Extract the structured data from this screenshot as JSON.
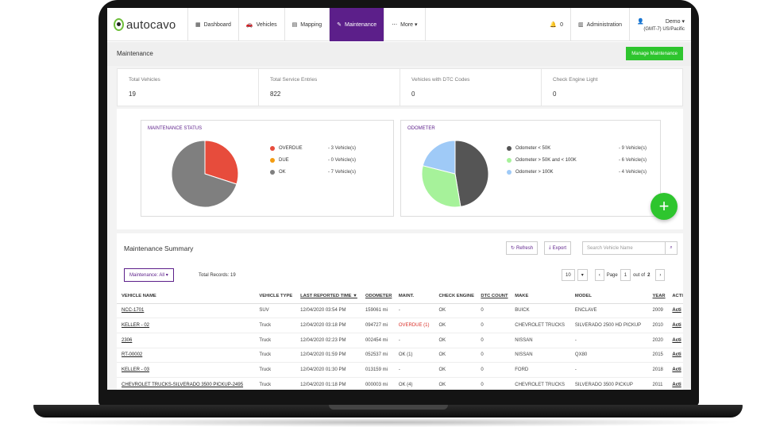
{
  "nav": {
    "logo": "autocavo",
    "items": [
      {
        "label": "Dashboard",
        "icon": "dashboard-icon",
        "glyph": "▦"
      },
      {
        "label": "Vehicles",
        "icon": "car-icon",
        "glyph": "🚗"
      },
      {
        "label": "Mapping",
        "icon": "map-icon",
        "glyph": "▤"
      },
      {
        "label": "Maintenance",
        "icon": "wrench-icon",
        "glyph": "✎"
      },
      {
        "label": "More ▾",
        "icon": "more-icon",
        "glyph": "⋯"
      }
    ],
    "notifications": {
      "icon": "bell-icon",
      "glyph": "🔔",
      "count": "0"
    },
    "admin": {
      "label": "Administration",
      "icon": "admin-icon",
      "glyph": "▥"
    },
    "user": {
      "name": "Demo ▾",
      "timezone": "(GMT-7) US/Pacific",
      "icon": "user-icon",
      "glyph": "👤"
    }
  },
  "header": {
    "title": "Maintenance",
    "manage_button": "Manage Maintenance"
  },
  "stats": [
    {
      "label": "Total Vehicles",
      "value": "19"
    },
    {
      "label": "Total Service Entries",
      "value": "822"
    },
    {
      "label": "Vehicles with DTC Codes",
      "value": "0"
    },
    {
      "label": "Check Engine Light",
      "value": "0"
    }
  ],
  "colors": {
    "purple": "#5c1f8a",
    "green": "#2ec52e",
    "overdue": "#e74c3c",
    "due": "#f39c12",
    "ok": "#7f7f7f",
    "od1": "#555555",
    "od2": "#a6f29a",
    "od3": "#9fcaf7"
  },
  "chart_data": [
    {
      "type": "pie",
      "title": "MAINTENANCE STATUS",
      "series": [
        {
          "name": "OVERDUE",
          "value": 3,
          "label": "- 3 Vehicle(s)",
          "color": "#e74c3c"
        },
        {
          "name": "DUE",
          "value": 0,
          "label": "- 0 Vehicle(s)",
          "color": "#f39c12"
        },
        {
          "name": "OK",
          "value": 7,
          "label": "- 7 Vehicle(s)",
          "color": "#7f7f7f"
        }
      ]
    },
    {
      "type": "pie",
      "title": "ODOMETER",
      "series": [
        {
          "name": "Odometer < 50K",
          "value": 9,
          "label": "- 9 Vehicle(s)",
          "color": "#555555"
        },
        {
          "name": "Odometer > 50K and < 100K",
          "value": 6,
          "label": "- 6 Vehicle(s)",
          "color": "#a6f29a"
        },
        {
          "name": "Odometer > 100K",
          "value": 4,
          "label": "- 4 Vehicle(s)",
          "color": "#9fcaf7"
        }
      ]
    }
  ],
  "summary": {
    "title": "Maintenance Summary",
    "refresh": "Refresh",
    "export": "Export",
    "search_placeholder": "Search Vehicle Name",
    "filter": "Maintenance: All ▾",
    "total_records": "Total Records: 19",
    "page_size": "10",
    "page_label": "Page",
    "page": "1",
    "out_of": "out of",
    "total_pages": "2",
    "columns": [
      "VEHICLE NAME",
      "VEHICLE TYPE",
      "LAST REPORTED TIME ▼",
      "ODOMETER",
      "MAINT.",
      "CHECK ENGINE",
      "DTC COUNT",
      "MAKE",
      "MODEL",
      "YEAR",
      "ACTI"
    ],
    "rows": [
      [
        "NCC-1701",
        "SUV",
        "12/04/2020 03:54 PM",
        "159061 mi",
        "-",
        "OK",
        "0",
        "BUICK",
        "ENCLAVE",
        "2009",
        "Acti"
      ],
      [
        "KELLER - 02",
        "Truck",
        "12/04/2020 03:18 PM",
        "094727 mi",
        "OVERDUE (1)",
        "OK",
        "0",
        "CHEVROLET TRUCKS",
        "SILVERADO 2500 HD PICKUP",
        "2010",
        "Acti"
      ],
      [
        "2306",
        "Truck",
        "12/04/2020 02:23 PM",
        "002454 mi",
        "-",
        "OK",
        "0",
        "NISSAN",
        "-",
        "2020",
        "Acti"
      ],
      [
        "RT-00002",
        "Truck",
        "12/04/2020 01:59 PM",
        "052537 mi",
        "OK (1)",
        "OK",
        "0",
        "NISSAN",
        "QX80",
        "2015",
        "Acti"
      ],
      [
        "KELLER - 03",
        "Truck",
        "12/04/2020 01:30 PM",
        "013159 mi",
        "-",
        "OK",
        "0",
        "FORD",
        "-",
        "2018",
        "Acti"
      ],
      [
        "CHEVROLET TRUCKS-SILVERADO 3500 PICKUP-2495",
        "Truck",
        "12/04/2020 01:18 PM",
        "000003 mi",
        "OK (4)",
        "OK",
        "0",
        "CHEVROLET TRUCKS",
        "SILVERADO 3500 PICKUP",
        "2011",
        "Acti"
      ]
    ]
  }
}
